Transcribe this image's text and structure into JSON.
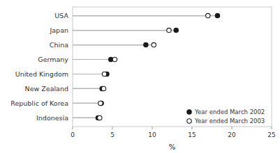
{
  "chart_data": {
    "type": "dot",
    "orientation": "horizontal",
    "categories": [
      "USA",
      "Japan",
      "China",
      "Germany",
      "United Kingdom",
      "New Zealand",
      "Republic of Korea",
      "Indonesia"
    ],
    "series": [
      {
        "name": "Year ended March 2002",
        "color": "#1a1a1a",
        "marker": "circle",
        "values": [
          18.2,
          13.0,
          9.2,
          4.8,
          4.3,
          3.7,
          3.6,
          3.2
        ]
      },
      {
        "name": "Year ended March 2003",
        "color": "#1a1a1a",
        "marker": "circle-open",
        "values": [
          17.0,
          12.1,
          10.2,
          5.3,
          4.0,
          3.9,
          3.5,
          3.4
        ]
      }
    ],
    "xlabel": "%",
    "xlim": [
      0,
      25
    ],
    "xticks": [
      0,
      5,
      10,
      15,
      20,
      25
    ],
    "grid": false,
    "legend": "lower-right"
  }
}
